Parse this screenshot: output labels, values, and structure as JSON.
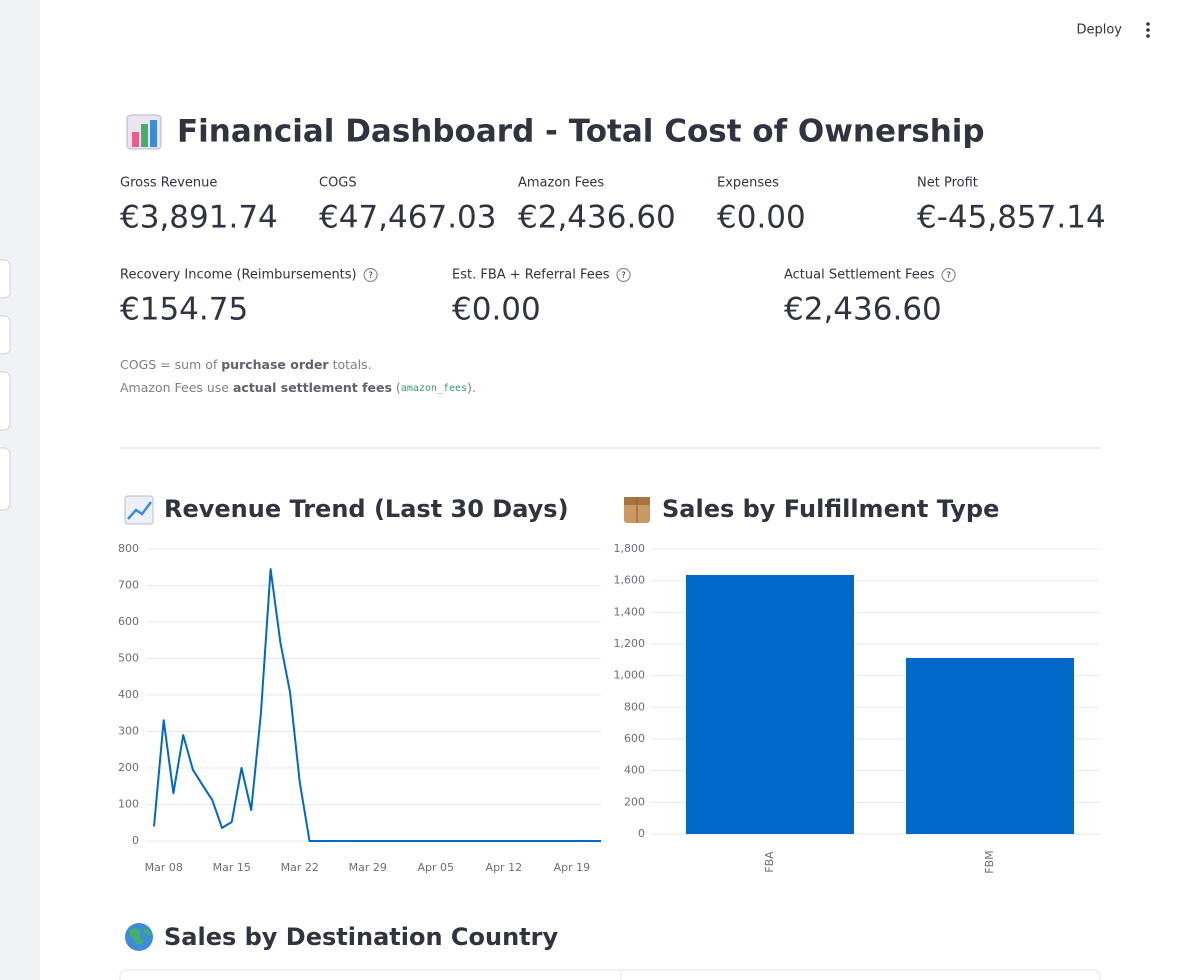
{
  "header": {
    "deploy": "Deploy"
  },
  "title": "Financial Dashboard - Total Cost of Ownership",
  "metrics": [
    {
      "label": "Gross Revenue",
      "value": "€3,891.74"
    },
    {
      "label": "COGS",
      "value": "€47,467.03"
    },
    {
      "label": "Amazon Fees",
      "value": "€2,436.60"
    },
    {
      "label": "Expenses",
      "value": "€0.00"
    },
    {
      "label": "Net Profit",
      "value": "€-45,857.14"
    },
    {
      "label": "Recovery Income (Reimbursements)",
      "value": "€154.75",
      "help": true
    },
    {
      "label": "Est. FBA + Referral Fees",
      "value": "€0.00",
      "help": true
    },
    {
      "label": "Actual Settlement Fees",
      "value": "€2,436.60",
      "help": true
    }
  ],
  "notes": [
    [
      {
        "text": "COGS = sum of "
      },
      {
        "text": "purchase order",
        "bold": true
      },
      {
        "text": " totals."
      }
    ],
    [
      {
        "text": "Amazon Fees use "
      },
      {
        "text": "actual settlement fees",
        "bold": true
      },
      {
        "text": " ("
      },
      {
        "text": "amazon_fees",
        "code": true
      },
      {
        "text": ")."
      }
    ]
  ],
  "chart_data": [
    {
      "type": "line",
      "title": "Revenue Trend (Last 30 Days)",
      "color": "#0068c9",
      "x": [
        "Mar 07",
        "Mar 08",
        "Mar 09",
        "Mar 10",
        "Mar 11",
        "Mar 12",
        "Mar 13",
        "Mar 14",
        "Mar 15",
        "Mar 16",
        "Mar 17",
        "Mar 18",
        "Mar 19",
        "Mar 20",
        "Mar 21",
        "Mar 22",
        "Mar 23",
        "Mar 24",
        "Mar 25",
        "Mar 26",
        "Mar 27",
        "Mar 28",
        "Mar 29",
        "Mar 30",
        "Mar 31",
        "Apr 01",
        "Apr 02",
        "Apr 03",
        "Apr 04",
        "Apr 05",
        "Apr 06",
        "Apr 07",
        "Apr 08",
        "Apr 09",
        "Apr 10",
        "Apr 11",
        "Apr 12",
        "Apr 13",
        "Apr 14",
        "Apr 15",
        "Apr 16",
        "Apr 17",
        "Apr 18",
        "Apr 19",
        "Apr 20",
        "Apr 21",
        "Apr 22"
      ],
      "values": [
        40,
        331,
        131,
        290,
        195,
        153,
        112,
        36,
        52,
        200,
        85,
        350,
        745,
        545,
        408,
        160,
        0,
        0,
        0,
        0,
        0,
        0,
        0,
        0,
        0,
        0,
        0,
        0,
        0,
        0,
        0,
        0,
        0,
        0,
        0,
        0,
        0,
        0,
        0,
        0,
        0,
        0,
        0,
        0,
        0,
        0,
        0
      ],
      "xticks": [
        "Mar 08",
        "Mar 15",
        "Mar 22",
        "Mar 29",
        "Apr 05",
        "Apr 12",
        "Apr 19"
      ],
      "ylim": [
        0,
        800
      ],
      "yticks": [
        0,
        100,
        200,
        300,
        400,
        500,
        600,
        700,
        800
      ],
      "grid": true
    },
    {
      "type": "bar",
      "title": "Sales by Fulfillment Type",
      "color": "#0068c9",
      "categories": [
        "FBA",
        "FBM"
      ],
      "values": [
        1636,
        1112
      ],
      "ylim": [
        0,
        1800
      ],
      "yticks": [
        0,
        200,
        400,
        600,
        800,
        {
          "value": 1000,
          "label": "1,000"
        },
        {
          "value": 1200,
          "label": "1,200"
        },
        {
          "value": 1400,
          "label": "1,400"
        },
        {
          "value": 1600,
          "label": "1,600"
        },
        {
          "value": 1800,
          "label": "1,800"
        }
      ],
      "grid": true
    }
  ],
  "country_heading": "Sales by Destination Country"
}
